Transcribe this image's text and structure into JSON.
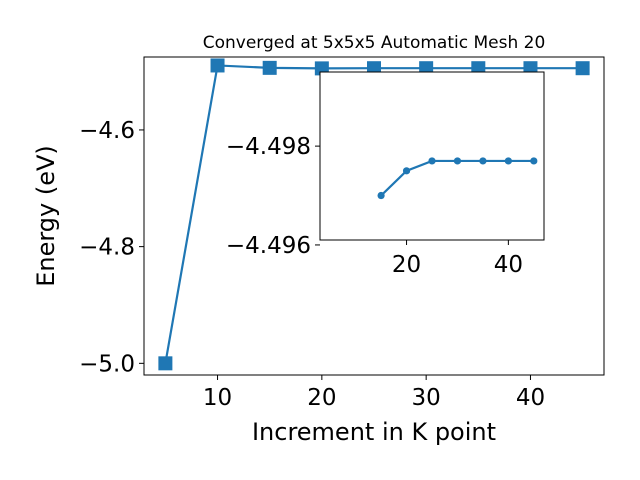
{
  "chart_data": [
    {
      "type": "line",
      "title": "Converged at 5x5x5 Automatic Mesh 20",
      "xlabel": "Increment in K point",
      "ylabel": "Energy (eV)",
      "xlim": [
        2.95,
        47.05
      ],
      "ylim": [
        -5.02,
        -4.475
      ],
      "xticks": [
        10,
        20,
        30,
        40
      ],
      "yticks": [
        -5.0,
        -4.8,
        -4.6
      ],
      "ytick_labels": [
        "−5.0",
        "−4.8",
        "−4.6"
      ],
      "xtick_labels": [
        "10",
        "20",
        "30",
        "40"
      ],
      "marker": "square",
      "grid": false,
      "series": [
        {
          "color": "#1f77b4",
          "x": [
            5,
            10,
            15,
            20,
            25,
            30,
            35,
            40,
            45
          ],
          "y": [
            -5.0,
            -4.4895,
            -4.4936,
            -4.4945,
            -4.4942,
            -4.4942,
            -4.4942,
            -4.4942,
            -4.4942
          ]
        }
      ]
    },
    {
      "type": "line",
      "title": "",
      "xlabel": "",
      "ylabel": "",
      "xlim": [
        3.0,
        47.0
      ],
      "ylim": [
        -4.4961,
        -4.4995
      ],
      "xticks": [
        20,
        40
      ],
      "yticks": [
        -4.498,
        -4.496
      ],
      "ytick_labels": [
        "−4.498",
        "−4.496"
      ],
      "xtick_labels": [
        "20",
        "40"
      ],
      "marker": "circle",
      "grid": false,
      "series": [
        {
          "color": "#1f77b4",
          "x": [
            15,
            20,
            25,
            30,
            35,
            40,
            45
          ],
          "y": [
            -4.497,
            -4.4975,
            -4.4977,
            -4.4977,
            -4.4977,
            -4.4977,
            -4.4977
          ]
        }
      ]
    }
  ]
}
